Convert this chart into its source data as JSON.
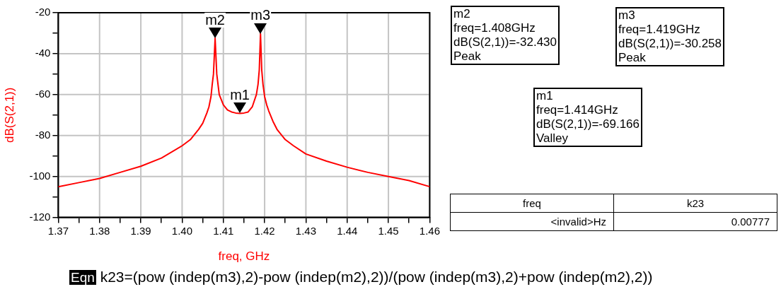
{
  "chart_data": {
    "type": "line",
    "xlabel": "freq, GHz",
    "ylabel": "dB(S(2,1))",
    "series": [
      {
        "color": "#ff0000",
        "x": [
          1.37,
          1.375,
          1.38,
          1.385,
          1.39,
          1.395,
          1.4,
          1.402,
          1.404,
          1.405,
          1.406,
          1.4065,
          1.407,
          1.4073,
          1.4076,
          1.408,
          1.4084,
          1.4087,
          1.409,
          1.41,
          1.411,
          1.412,
          1.413,
          1.414,
          1.415,
          1.416,
          1.417,
          1.4175,
          1.418,
          1.4184,
          1.4187,
          1.419,
          1.4193,
          1.4196,
          1.42,
          1.4205,
          1.421,
          1.422,
          1.423,
          1.425,
          1.427,
          1.43,
          1.435,
          1.44,
          1.445,
          1.45,
          1.455,
          1.46
        ],
        "values": [
          -105,
          -103,
          -101,
          -98,
          -95,
          -91,
          -85,
          -82,
          -77,
          -74,
          -69,
          -66,
          -61,
          -55,
          -50,
          -32.43,
          -50,
          -55,
          -60,
          -65,
          -67.5,
          -68.5,
          -69,
          -69.166,
          -69,
          -68.5,
          -66,
          -63,
          -60,
          -55,
          -48,
          -30.258,
          -48,
          -55,
          -61,
          -65,
          -68,
          -73,
          -77,
          -82,
          -85,
          -89,
          -92.5,
          -95.5,
          -98,
          -100,
          -102,
          -105
        ]
      }
    ],
    "xlim": [
      1.37,
      1.46
    ],
    "xticks": [
      1.37,
      {
        "value": 1.375,
        "label": null
      },
      1.38,
      {
        "value": 1.385,
        "label": null
      },
      1.39,
      {
        "value": 1.395,
        "label": null
      },
      {
        "value": 1.4,
        "label": "1.40"
      },
      {
        "value": 1.405,
        "label": null
      },
      1.41,
      {
        "value": 1.415,
        "label": null
      },
      1.42,
      {
        "value": 1.425,
        "label": null
      },
      1.43,
      {
        "value": 1.435,
        "label": null
      },
      1.44,
      {
        "value": 1.445,
        "label": null
      },
      1.45,
      {
        "value": 1.455,
        "label": null
      },
      1.46
    ],
    "ylim": [
      -120,
      -20
    ],
    "yticks": [
      -120,
      {
        "value": -110,
        "label": null
      },
      -100,
      {
        "value": -90,
        "label": null
      },
      -80,
      {
        "value": -70,
        "label": null
      },
      -60,
      {
        "value": -50,
        "label": null
      },
      -40,
      {
        "value": -30,
        "label": null
      },
      -20
    ],
    "grid": true,
    "marker": "none",
    "line_style": "solid",
    "annotations": [
      {
        "text": "m2",
        "x": 1.408,
        "y": -32.43
      },
      {
        "text": "m3",
        "x": 1.419,
        "y": -30.258
      },
      {
        "text": "m1",
        "x": 1.414,
        "y": -69.166
      },
      "m2\nfreq=1.408GHz\ndB(S(2,1))=-32.430\nPeak",
      "m3\nfreq=1.419GHz\ndB(S(2,1))=-30.258\nPeak",
      "m1\nfreq=1.414GHz\ndB(S(2,1))=-69.166\nValley",
      "freq\n<invalid>Hz",
      "k23\n0.00777",
      "Eqn k23=(pow (indep(m3),2)-pow (indep(m2),2))/(pow (indep(m3),2)+pow (indep(m2),2))"
    ]
  }
}
